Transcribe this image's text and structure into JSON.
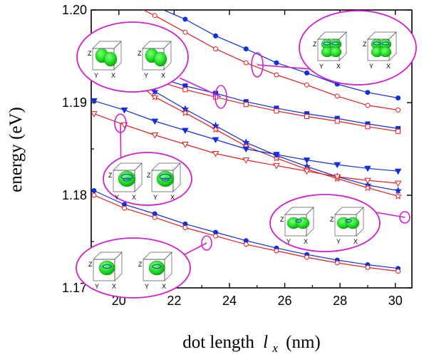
{
  "chart_data": {
    "type": "line",
    "xlabel_main": "dot length",
    "xlabel_var": "l",
    "xlabel_sub": "x",
    "xlabel_unit": "(nm)",
    "ylabel": "energy (eV)",
    "xlim": [
      19.0,
      30.6
    ],
    "ylim": [
      1.17,
      1.2
    ],
    "xticks": [
      20,
      22,
      24,
      26,
      28,
      30
    ],
    "yticks": [
      1.17,
      1.18,
      1.19,
      1.2
    ],
    "ytick_labels": [
      "1.17",
      "1.18",
      "1.19",
      "1.20"
    ],
    "grid": false,
    "colors": {
      "blue": "#1030dd",
      "red": "#e81e1e",
      "ellipse": "#d020d0",
      "blob": "#22dd22"
    },
    "x": [
      19.1,
      20.2,
      21.3,
      22.4,
      23.5,
      24.6,
      25.7,
      26.8,
      27.9,
      29.0,
      30.1
    ],
    "series": [
      {
        "color": "blue",
        "marker": "circle-filled",
        "values": [
          1.2035,
          1.2018,
          1.2004,
          1.199,
          1.1972,
          1.1958,
          1.1943,
          1.1932,
          1.192,
          1.1911,
          1.1905
        ]
      },
      {
        "color": "red",
        "marker": "circle-open",
        "values": [
          1.203,
          1.201,
          1.1994,
          1.1976,
          1.1958,
          1.1943,
          1.193,
          1.1919,
          1.1907,
          1.1897,
          1.1892
        ]
      },
      {
        "color": "blue",
        "marker": "star-filled",
        "values": [
          1.1955,
          1.1936,
          1.1912,
          1.1893,
          1.1875,
          1.1857,
          1.1843,
          1.1831,
          1.182,
          1.1811,
          1.1805
        ]
      },
      {
        "color": "red",
        "marker": "star-open",
        "values": [
          1.1952,
          1.1931,
          1.1906,
          1.1889,
          1.1871,
          1.1853,
          1.184,
          1.1828,
          1.1818,
          1.1808,
          1.1799
        ]
      },
      {
        "color": "blue",
        "marker": "square-filled",
        "values": [
          1.195,
          1.1938,
          1.1928,
          1.1918,
          1.191,
          1.1901,
          1.1894,
          1.1888,
          1.1883,
          1.1877,
          1.1872
        ]
      },
      {
        "color": "red",
        "marker": "square-open",
        "values": [
          1.1946,
          1.1934,
          1.1924,
          1.1914,
          1.1906,
          1.1898,
          1.1891,
          1.1885,
          1.188,
          1.1874,
          1.1869
        ]
      },
      {
        "color": "blue",
        "marker": "triangle-down-filled",
        "values": [
          1.1902,
          1.1892,
          1.188,
          1.187,
          1.186,
          1.185,
          1.1844,
          1.1838,
          1.1833,
          1.1829,
          1.1826
        ]
      },
      {
        "color": "red",
        "marker": "triangle-down-open",
        "values": [
          1.1888,
          1.1876,
          1.1865,
          1.1855,
          1.1845,
          1.1838,
          1.1832,
          1.1826,
          1.182,
          1.1816,
          1.1813
        ]
      },
      {
        "color": "blue",
        "marker": "circle-filled",
        "values": [
          1.1805,
          1.179,
          1.178,
          1.1769,
          1.176,
          1.1751,
          1.1743,
          1.1736,
          1.173,
          1.1725,
          1.1721
        ]
      },
      {
        "color": "red",
        "marker": "circle-open",
        "values": [
          1.18,
          1.1786,
          1.1776,
          1.1765,
          1.1756,
          1.1747,
          1.174,
          1.1733,
          1.1727,
          1.1722,
          1.1718
        ]
      }
    ],
    "insets": [
      {
        "cube_labels": [
          "Z",
          "Y",
          "X"
        ],
        "blobs": "two-lobes",
        "points_to": [
          24.0,
          1.1905
        ]
      },
      {
        "cube_labels": [
          "Z",
          "Y",
          "X"
        ],
        "blobs": "four-rings",
        "points_to": [
          25.2,
          1.1955
        ]
      },
      {
        "cube_labels": [
          "Z",
          "Y",
          "X"
        ],
        "blobs": "ring",
        "points_to": [
          20.7,
          1.188
        ]
      },
      {
        "cube_labels": [
          "Z",
          "Y",
          "X"
        ],
        "blobs": "two-lobes-wide",
        "points_to": [
          30.0,
          1.18
        ]
      },
      {
        "cube_labels": [
          "Z",
          "Y",
          "X"
        ],
        "blobs": "single",
        "points_to": [
          23.5,
          1.176
        ]
      }
    ]
  }
}
